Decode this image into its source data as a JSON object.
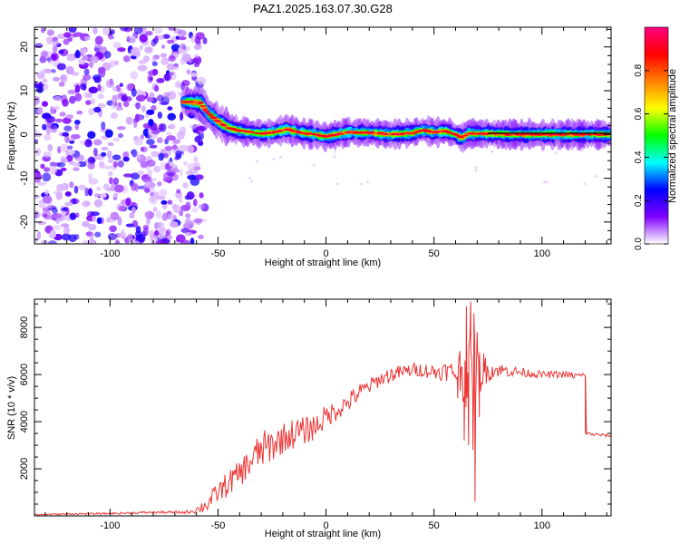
{
  "title": "PAZ1.2025.163.07.30.G28",
  "chart_data": [
    {
      "type": "heatmap",
      "xlabel": "Height of straight line (km)",
      "ylabel": "Frequency (Hz)",
      "xlim": [
        -135,
        132
      ],
      "ylim": [
        -25,
        24.5
      ],
      "xticks": [
        -100,
        -50,
        0,
        50,
        100
      ],
      "yticks": [
        -20,
        -10,
        0,
        10,
        20
      ],
      "colorbar_label": "Normalized spectral amplitude",
      "colorbar_ticks": [
        "0.0",
        "0.2",
        "0.4",
        "0.6",
        "0.8"
      ],
      "colorbar_tick_values": [
        0.0,
        0.2,
        0.4,
        0.6,
        0.8
      ],
      "colorbar_range": [
        0,
        1
      ],
      "colormap": [
        "#ffffff",
        "#8000ff",
        "#0000ff",
        "#00ffff",
        "#00ff00",
        "#ffff00",
        "#ff8000",
        "#ff0000",
        "#ff0080"
      ],
      "noise_region_x": [
        -135,
        -62
      ],
      "ridge": [
        {
          "x": -65,
          "y": 7.5
        },
        {
          "x": -58,
          "y": 7.2
        },
        {
          "x": -55,
          "y": 5.0
        },
        {
          "x": -50,
          "y": 3.0
        },
        {
          "x": -45,
          "y": 1.5
        },
        {
          "x": -40,
          "y": 0.8
        },
        {
          "x": -35,
          "y": 0.5
        },
        {
          "x": -30,
          "y": 0.2
        },
        {
          "x": -25,
          "y": 0.4
        },
        {
          "x": -18,
          "y": 1.2
        },
        {
          "x": -12,
          "y": 0.4
        },
        {
          "x": -5,
          "y": 0.0
        },
        {
          "x": 0,
          "y": -0.5
        },
        {
          "x": 5,
          "y": 0.0
        },
        {
          "x": 10,
          "y": 0.5
        },
        {
          "x": 20,
          "y": 0.4
        },
        {
          "x": 30,
          "y": 0.0
        },
        {
          "x": 40,
          "y": 0.3
        },
        {
          "x": 45,
          "y": 1.0
        },
        {
          "x": 50,
          "y": 0.5
        },
        {
          "x": 55,
          "y": 0.8
        },
        {
          "x": 60,
          "y": 0.0
        },
        {
          "x": 63,
          "y": -0.8
        },
        {
          "x": 66,
          "y": 0.2
        },
        {
          "x": 75,
          "y": 0.2
        },
        {
          "x": 85,
          "y": 0.0
        },
        {
          "x": 100,
          "y": 0.0
        },
        {
          "x": 115,
          "y": 0.0
        },
        {
          "x": 132,
          "y": 0.0
        }
      ],
      "grid": false
    },
    {
      "type": "line",
      "xlabel": "Height of straight line (km)",
      "ylabel": "SNR (10 * v/v)",
      "xlim": [
        -135,
        132
      ],
      "ylim": [
        0,
        9200
      ],
      "xticks": [
        -100,
        -50,
        0,
        50,
        100
      ],
      "yticks": [
        2000,
        4000,
        6000,
        8000
      ],
      "line_color": "#ee3333",
      "series": [
        {
          "x": [
            -135,
            -120,
            -100,
            -80,
            -65,
            -60,
            -55,
            -50,
            -45,
            -40,
            -35,
            -30,
            -25,
            -20,
            -15,
            -10,
            -5,
            0,
            5,
            10,
            15,
            20,
            25,
            30,
            35,
            40,
            45,
            50,
            55,
            60,
            65,
            70,
            75,
            80,
            85,
            90,
            95,
            100,
            105,
            110,
            115,
            119.5,
            120,
            125,
            132
          ],
          "values": [
            50,
            80,
            100,
            150,
            150,
            250,
            500,
            1000,
            1400,
            1800,
            2300,
            2800,
            3000,
            3300,
            3500,
            3600,
            3800,
            4200,
            4500,
            4800,
            5200,
            5500,
            5800,
            6000,
            6100,
            6200,
            6200,
            6100,
            6150,
            6100,
            6100,
            6150,
            6150,
            6200,
            6150,
            6100,
            6050,
            6000,
            6000,
            6000,
            5950,
            5950,
            3500,
            3450,
            3400
          ],
          "noise": [
            30,
            30,
            40,
            50,
            60,
            150,
            350,
            450,
            550,
            550,
            700,
            800,
            750,
            650,
            650,
            600,
            550,
            500,
            450,
            400,
            400,
            350,
            300,
            350,
            300,
            300,
            300,
            350,
            400,
            500,
            1600,
            1200,
            450,
            300,
            250,
            200,
            180,
            150,
            150,
            150,
            150,
            150,
            80,
            70,
            60
          ]
        }
      ],
      "spikes": [
        {
          "x": 64,
          "y": 3200
        },
        {
          "x": 65,
          "y": 8900
        },
        {
          "x": 66,
          "y": 3000
        },
        {
          "x": 67,
          "y": 9100
        },
        {
          "x": 68,
          "y": 2800
        },
        {
          "x": 68.5,
          "y": 8600
        },
        {
          "x": 69,
          "y": 600
        },
        {
          "x": 70,
          "y": 7800
        },
        {
          "x": 71,
          "y": 4200
        },
        {
          "x": 62,
          "y": 7000
        },
        {
          "x": 61,
          "y": 5000
        },
        {
          "x": 73,
          "y": 6900
        }
      ],
      "grid": false
    }
  ]
}
